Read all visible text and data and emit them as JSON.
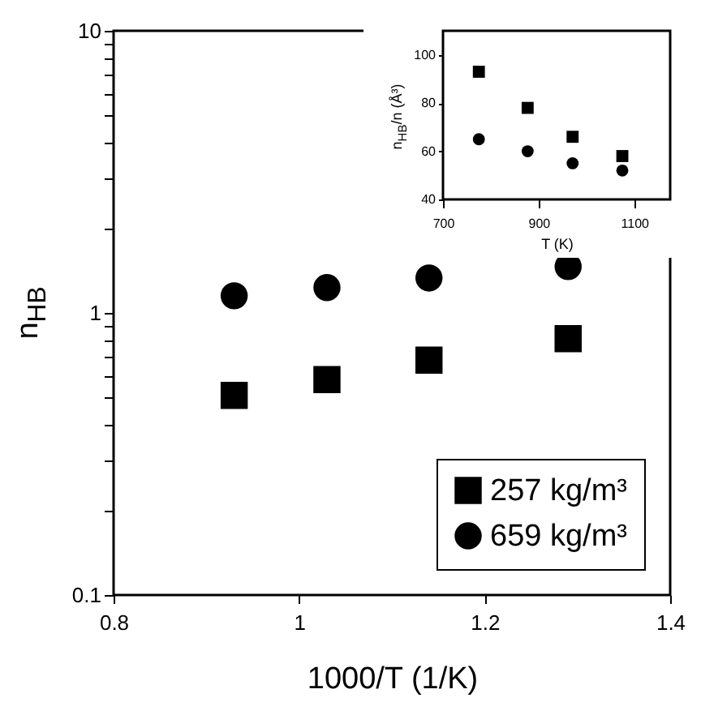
{
  "chart_data": [
    {
      "type": "scatter",
      "xlabel": "1000/T (1/K)",
      "ylabel": "n$_{HB}$",
      "log": "y",
      "grid": false,
      "legend": "bottom right",
      "xlim": [
        0.8,
        1.4
      ],
      "xticks": [
        0.8,
        1,
        1.2,
        1.4
      ],
      "ylim": [
        0.1,
        10
      ],
      "yticks": [
        0.1,
        {
          "value": 0.2,
          "label": null
        },
        {
          "value": 0.3,
          "label": null
        },
        {
          "value": 0.4,
          "label": null
        },
        {
          "value": 0.5,
          "label": null
        },
        {
          "value": 0.6,
          "label": null
        },
        {
          "value": 0.7,
          "label": null
        },
        {
          "value": 0.8,
          "label": null
        },
        {
          "value": 0.9,
          "label": null
        },
        1,
        {
          "value": 2,
          "label": null
        },
        {
          "value": 3,
          "label": null
        },
        {
          "value": 4,
          "label": null
        },
        {
          "value": 5,
          "label": null
        },
        {
          "value": 6,
          "label": null
        },
        {
          "value": 7,
          "label": null
        },
        {
          "value": 8,
          "label": null
        },
        {
          "value": 9,
          "label": null
        },
        10
      ],
      "x": [
        0.93,
        1.03,
        1.14,
        1.29
      ],
      "series": [
        {
          "name": "257 kg/m³",
          "color": "#000000",
          "marker": "square",
          "values": [
            0.51,
            0.58,
            0.68,
            0.81
          ]
        },
        {
          "name": "659 kg/m³",
          "color": "#000000",
          "marker": "circle",
          "values": [
            1.15,
            1.23,
            1.33,
            1.46
          ]
        }
      ]
    },
    {
      "type": "scatter",
      "xlabel": "T (K)",
      "ylabel": "n$_{HB}$/n (Å³)",
      "grid": false,
      "legend": false,
      "xlim": [
        700,
        1175
      ],
      "xticks": [
        700,
        900,
        1100
      ],
      "ylim": [
        40,
        110
      ],
      "yticks": [
        40,
        60,
        80,
        100
      ],
      "x": [
        775,
        877,
        971,
        1075
      ],
      "series": [
        {
          "color": "#000000",
          "marker": "square",
          "values": [
            93,
            78,
            66,
            58
          ]
        },
        {
          "color": "#000000",
          "marker": "circle",
          "values": [
            65,
            60,
            55,
            52
          ]
        }
      ]
    }
  ]
}
